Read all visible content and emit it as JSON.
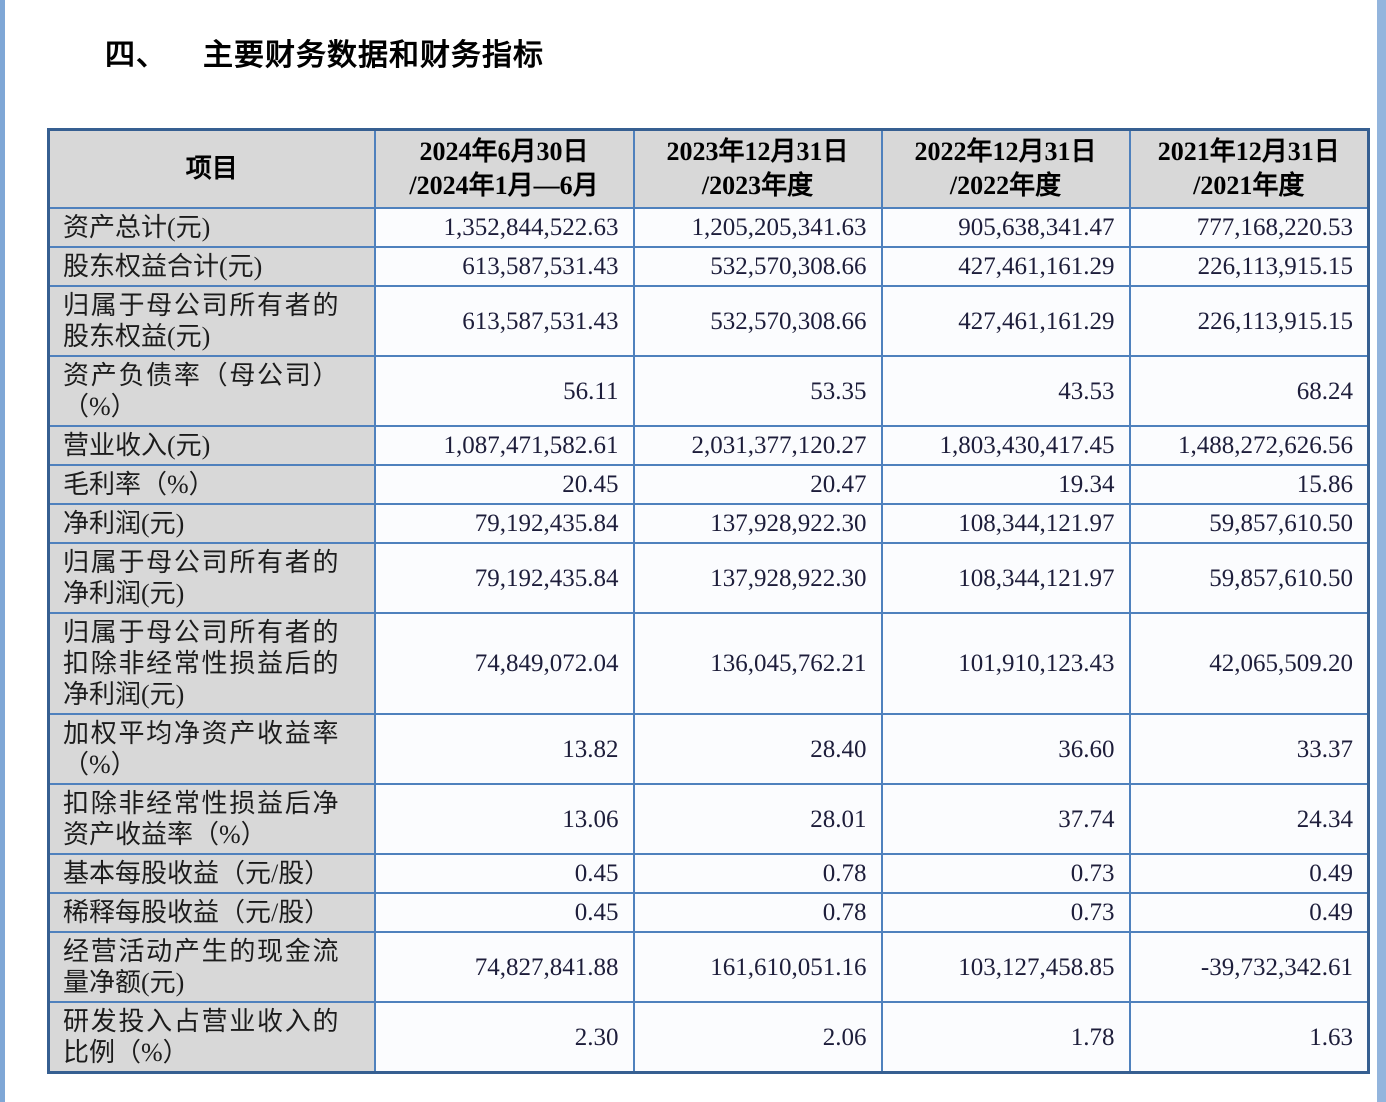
{
  "section": {
    "number": "四、",
    "title": "主要财务数据和财务指标"
  },
  "table": {
    "header_label": "项目",
    "columns": [
      {
        "line1": "2024年6月30日",
        "line2": "/2024年1月—6月"
      },
      {
        "line1": "2023年12月31日",
        "line2": "/2023年度"
      },
      {
        "line1": "2022年12月31日",
        "line2": "/2022年度"
      },
      {
        "line1": "2021年12月31日",
        "line2": "/2021年度"
      }
    ],
    "rows": [
      {
        "label": "资产总计(元)",
        "values": [
          "1,352,844,522.63",
          "1,205,205,341.63",
          "905,638,341.47",
          "777,168,220.53"
        ]
      },
      {
        "label": "股东权益合计(元)",
        "values": [
          "613,587,531.43",
          "532,570,308.66",
          "427,461,161.29",
          "226,113,915.15"
        ]
      },
      {
        "label": "归属于母公司所有者的股东权益(元)",
        "values": [
          "613,587,531.43",
          "532,570,308.66",
          "427,461,161.29",
          "226,113,915.15"
        ]
      },
      {
        "label": "资产负债率（母公司）（%）",
        "values": [
          "56.11",
          "53.35",
          "43.53",
          "68.24"
        ]
      },
      {
        "label": "营业收入(元)",
        "values": [
          "1,087,471,582.61",
          "2,031,377,120.27",
          "1,803,430,417.45",
          "1,488,272,626.56"
        ]
      },
      {
        "label": "毛利率（%）",
        "values": [
          "20.45",
          "20.47",
          "19.34",
          "15.86"
        ]
      },
      {
        "label": "净利润(元)",
        "values": [
          "79,192,435.84",
          "137,928,922.30",
          "108,344,121.97",
          "59,857,610.50"
        ]
      },
      {
        "label": "归属于母公司所有者的净利润(元)",
        "values": [
          "79,192,435.84",
          "137,928,922.30",
          "108,344,121.97",
          "59,857,610.50"
        ]
      },
      {
        "label": "归属于母公司所有者的扣除非经常性损益后的净利润(元)",
        "values": [
          "74,849,072.04",
          "136,045,762.21",
          "101,910,123.43",
          "42,065,509.20"
        ]
      },
      {
        "label": "加权平均净资产收益率（%）",
        "values": [
          "13.82",
          "28.40",
          "36.60",
          "33.37"
        ]
      },
      {
        "label": "扣除非经常性损益后净资产收益率（%）",
        "values": [
          "13.06",
          "28.01",
          "37.74",
          "24.34"
        ]
      },
      {
        "label": "基本每股收益（元/股）",
        "values": [
          "0.45",
          "0.78",
          "0.73",
          "0.49"
        ]
      },
      {
        "label": "稀释每股收益（元/股）",
        "values": [
          "0.45",
          "0.78",
          "0.73",
          "0.49"
        ]
      },
      {
        "label": "经营活动产生的现金流量净额(元)",
        "values": [
          "74,827,841.88",
          "161,610,051.16",
          "103,127,458.85",
          "-39,732,342.61"
        ]
      },
      {
        "label": "研发投入占营业收入的比例（%）",
        "values": [
          "2.30",
          "2.06",
          "1.78",
          "1.63"
        ]
      }
    ]
  },
  "colors": {
    "border_outer": "#365f91",
    "border_inner": "#4f81bd",
    "header_bg": "#d8d8d8",
    "number_text": "#1d1d3a",
    "edge_strip_left": "#7fa7d6",
    "edge_strip_right": "#93b5dd"
  }
}
